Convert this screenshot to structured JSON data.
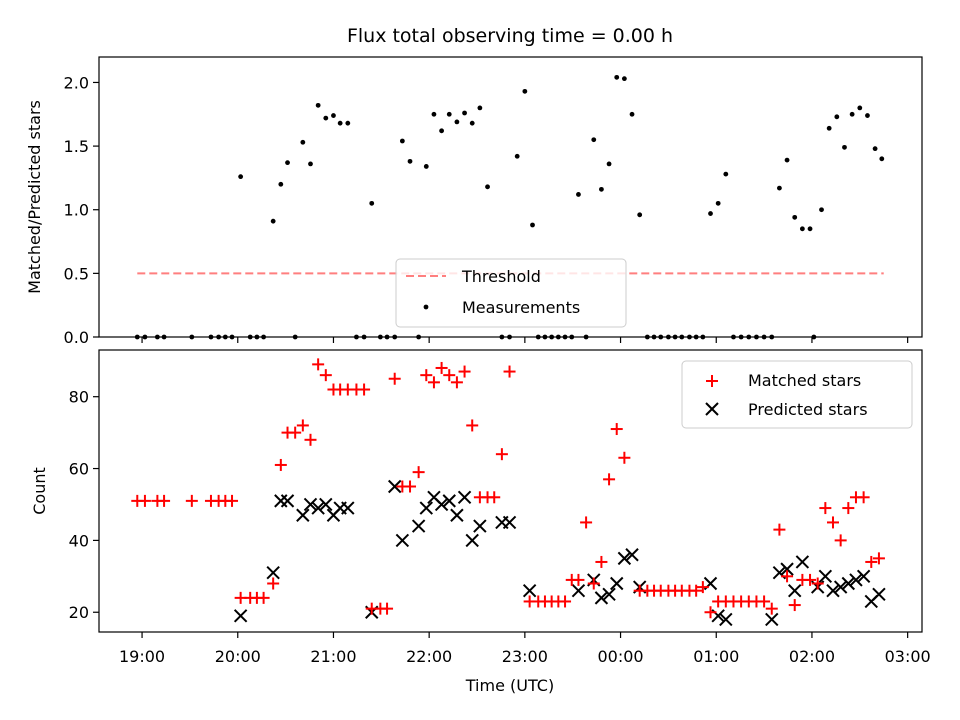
{
  "chart_data": [
    {
      "type": "scatter",
      "title": "Flux total observing time = 0.00 h",
      "xlabel": "",
      "ylabel": "Matched/Predicted stars",
      "xlim": [
        -0.45,
        8.15
      ],
      "ylim": [
        0.0,
        2.2
      ],
      "x_unit": "hours after 19:00 UTC",
      "yticks": [
        0.0,
        0.5,
        1.0,
        1.5,
        2.0
      ],
      "ytick_labels": [
        "0.0",
        "0.5",
        "1.0",
        "1.5",
        "2.0"
      ],
      "legend_position": "bottom-center",
      "threshold": {
        "name": "Threshold",
        "y": 0.5,
        "x_start": -0.05,
        "x_end": 7.75,
        "color": "#ff7f7f",
        "style": "dashed"
      },
      "series": [
        {
          "name": "Measurements",
          "color": "#000000",
          "marker": "dot",
          "points": [
            [
              -0.05,
              0.0
            ],
            [
              0.03,
              0.0
            ],
            [
              0.16,
              0.0
            ],
            [
              0.23,
              0.0
            ],
            [
              0.52,
              0.0
            ],
            [
              0.72,
              0.0
            ],
            [
              0.8,
              0.0
            ],
            [
              0.87,
              0.0
            ],
            [
              0.94,
              0.0
            ],
            [
              1.03,
              1.26
            ],
            [
              1.13,
              0.0
            ],
            [
              1.2,
              0.0
            ],
            [
              1.27,
              0.0
            ],
            [
              1.37,
              0.91
            ],
            [
              1.45,
              1.2
            ],
            [
              1.52,
              1.37
            ],
            [
              1.6,
              0.0
            ],
            [
              1.68,
              1.53
            ],
            [
              1.76,
              1.36
            ],
            [
              1.84,
              1.82
            ],
            [
              1.92,
              1.72
            ],
            [
              2.0,
              1.74
            ],
            [
              2.07,
              1.68
            ],
            [
              2.15,
              1.68
            ],
            [
              2.24,
              0.0
            ],
            [
              2.32,
              0.0
            ],
            [
              2.4,
              1.05
            ],
            [
              2.49,
              0.0
            ],
            [
              2.56,
              0.0
            ],
            [
              2.64,
              0.0
            ],
            [
              2.72,
              1.54
            ],
            [
              2.8,
              1.38
            ],
            [
              2.89,
              0.0
            ],
            [
              2.97,
              1.34
            ],
            [
              3.05,
              1.75
            ],
            [
              3.13,
              1.62
            ],
            [
              3.21,
              1.75
            ],
            [
              3.29,
              1.69
            ],
            [
              3.37,
              1.76
            ],
            [
              3.45,
              1.68
            ],
            [
              3.53,
              1.8
            ],
            [
              3.61,
              1.18
            ],
            [
              3.76,
              0.0
            ],
            [
              3.84,
              0.0
            ],
            [
              3.92,
              1.42
            ],
            [
              4.0,
              1.93
            ],
            [
              4.08,
              0.88
            ],
            [
              4.14,
              0.0
            ],
            [
              4.21,
              0.0
            ],
            [
              4.28,
              0.0
            ],
            [
              4.35,
              0.0
            ],
            [
              4.42,
              0.0
            ],
            [
              4.49,
              0.0
            ],
            [
              4.56,
              1.12
            ],
            [
              4.64,
              0.0
            ],
            [
              4.72,
              1.55
            ],
            [
              4.8,
              1.16
            ],
            [
              4.88,
              1.36
            ],
            [
              4.96,
              2.04
            ],
            [
              5.04,
              2.03
            ],
            [
              5.12,
              1.75
            ],
            [
              5.2,
              0.96
            ],
            [
              5.28,
              0.0
            ],
            [
              5.35,
              0.0
            ],
            [
              5.42,
              0.0
            ],
            [
              5.5,
              0.0
            ],
            [
              5.57,
              0.0
            ],
            [
              5.64,
              0.0
            ],
            [
              5.72,
              0.0
            ],
            [
              5.79,
              0.0
            ],
            [
              5.86,
              0.0
            ],
            [
              5.94,
              0.97
            ],
            [
              6.02,
              1.05
            ],
            [
              6.1,
              1.28
            ],
            [
              6.18,
              0.0
            ],
            [
              6.26,
              0.0
            ],
            [
              6.34,
              0.0
            ],
            [
              6.42,
              0.0
            ],
            [
              6.5,
              0.0
            ],
            [
              6.58,
              0.0
            ],
            [
              6.66,
              1.17
            ],
            [
              6.74,
              1.39
            ],
            [
              6.82,
              0.94
            ],
            [
              6.9,
              0.85
            ],
            [
              6.98,
              0.85
            ],
            [
              7.02,
              0.0
            ],
            [
              7.1,
              1.0
            ],
            [
              7.18,
              1.64
            ],
            [
              7.26,
              1.73
            ],
            [
              7.34,
              1.49
            ],
            [
              7.42,
              1.75
            ],
            [
              7.5,
              1.8
            ],
            [
              7.58,
              1.74
            ],
            [
              7.66,
              1.48
            ],
            [
              7.73,
              1.4
            ]
          ]
        }
      ]
    },
    {
      "type": "scatter",
      "title": "",
      "xlabel": "Time (UTC)",
      "ylabel": "Count",
      "xlim": [
        -0.45,
        8.15
      ],
      "ylim": [
        14.5,
        93.0
      ],
      "x_unit": "hours after 19:00 UTC",
      "xticks": [
        0,
        1,
        2,
        3,
        4,
        5,
        6,
        7,
        8
      ],
      "xtick_labels": [
        "19:00",
        "20:00",
        "21:00",
        "22:00",
        "23:00",
        "00:00",
        "01:00",
        "02:00",
        "03:00"
      ],
      "yticks": [
        20,
        40,
        60,
        80
      ],
      "ytick_labels": [
        "20",
        "40",
        "60",
        "80"
      ],
      "legend_position": "top-right",
      "series": [
        {
          "name": "Matched stars",
          "color": "#ff0000",
          "marker": "plus",
          "points": [
            [
              -0.05,
              51
            ],
            [
              0.03,
              51
            ],
            [
              0.16,
              51
            ],
            [
              0.23,
              51
            ],
            [
              0.52,
              51
            ],
            [
              0.72,
              51
            ],
            [
              0.8,
              51
            ],
            [
              0.87,
              51
            ],
            [
              0.94,
              51
            ],
            [
              1.03,
              24
            ],
            [
              1.13,
              24
            ],
            [
              1.2,
              24
            ],
            [
              1.27,
              24
            ],
            [
              1.37,
              28
            ],
            [
              1.45,
              61
            ],
            [
              1.52,
              70
            ],
            [
              1.6,
              70
            ],
            [
              1.68,
              72
            ],
            [
              1.76,
              68
            ],
            [
              1.84,
              89
            ],
            [
              1.92,
              86
            ],
            [
              2.0,
              82
            ],
            [
              2.07,
              82
            ],
            [
              2.15,
              82
            ],
            [
              2.24,
              82
            ],
            [
              2.32,
              82
            ],
            [
              2.4,
              21
            ],
            [
              2.49,
              21
            ],
            [
              2.56,
              21
            ],
            [
              2.64,
              85
            ],
            [
              2.72,
              55
            ],
            [
              2.8,
              55
            ],
            [
              2.89,
              59
            ],
            [
              2.97,
              86
            ],
            [
              3.05,
              84
            ],
            [
              3.13,
              88
            ],
            [
              3.21,
              86
            ],
            [
              3.29,
              84
            ],
            [
              3.37,
              87
            ],
            [
              3.45,
              72
            ],
            [
              3.53,
              52
            ],
            [
              3.61,
              52
            ],
            [
              3.68,
              52
            ],
            [
              3.76,
              64
            ],
            [
              3.84,
              87
            ],
            [
              4.05,
              23
            ],
            [
              4.14,
              23
            ],
            [
              4.21,
              23
            ],
            [
              4.28,
              23
            ],
            [
              4.35,
              23
            ],
            [
              4.42,
              23
            ],
            [
              4.49,
              29
            ],
            [
              4.56,
              29
            ],
            [
              4.64,
              45
            ],
            [
              4.72,
              28
            ],
            [
              4.8,
              34
            ],
            [
              4.88,
              57
            ],
            [
              4.96,
              71
            ],
            [
              5.04,
              63
            ],
            [
              5.2,
              26
            ],
            [
              5.28,
              26
            ],
            [
              5.35,
              26
            ],
            [
              5.42,
              26
            ],
            [
              5.5,
              26
            ],
            [
              5.57,
              26
            ],
            [
              5.64,
              26
            ],
            [
              5.72,
              26
            ],
            [
              5.79,
              26
            ],
            [
              5.86,
              27
            ],
            [
              5.94,
              20
            ],
            [
              6.02,
              23
            ],
            [
              6.1,
              23
            ],
            [
              6.18,
              23
            ],
            [
              6.26,
              23
            ],
            [
              6.34,
              23
            ],
            [
              6.42,
              23
            ],
            [
              6.5,
              23
            ],
            [
              6.58,
              21
            ],
            [
              6.66,
              43
            ],
            [
              6.74,
              30
            ],
            [
              6.82,
              22
            ],
            [
              6.9,
              29
            ],
            [
              6.98,
              29
            ],
            [
              7.06,
              28
            ],
            [
              7.14,
              49
            ],
            [
              7.22,
              45
            ],
            [
              7.3,
              40
            ],
            [
              7.38,
              49
            ],
            [
              7.46,
              52
            ],
            [
              7.54,
              52
            ],
            [
              7.62,
              34
            ],
            [
              7.7,
              35
            ]
          ]
        },
        {
          "name": "Predicted stars",
          "color": "#000000",
          "marker": "x",
          "points": [
            [
              1.03,
              19
            ],
            [
              1.37,
              31
            ],
            [
              1.45,
              51
            ],
            [
              1.52,
              51
            ],
            [
              1.68,
              47
            ],
            [
              1.76,
              50
            ],
            [
              1.84,
              49
            ],
            [
              1.92,
              50
            ],
            [
              2.0,
              47
            ],
            [
              2.07,
              49
            ],
            [
              2.15,
              49
            ],
            [
              2.4,
              20
            ],
            [
              2.64,
              55
            ],
            [
              2.72,
              40
            ],
            [
              2.89,
              44
            ],
            [
              2.97,
              49
            ],
            [
              3.05,
              52
            ],
            [
              3.13,
              50
            ],
            [
              3.21,
              51
            ],
            [
              3.29,
              47
            ],
            [
              3.37,
              52
            ],
            [
              3.45,
              40
            ],
            [
              3.53,
              44
            ],
            [
              3.76,
              45
            ],
            [
              3.84,
              45
            ],
            [
              4.05,
              26
            ],
            [
              4.56,
              26
            ],
            [
              4.72,
              29
            ],
            [
              4.8,
              24
            ],
            [
              4.88,
              25
            ],
            [
              4.96,
              28
            ],
            [
              5.04,
              35
            ],
            [
              5.12,
              36
            ],
            [
              5.2,
              27
            ],
            [
              5.94,
              28
            ],
            [
              6.02,
              19
            ],
            [
              6.1,
              18
            ],
            [
              6.58,
              18
            ],
            [
              6.66,
              31
            ],
            [
              6.74,
              32
            ],
            [
              6.82,
              26
            ],
            [
              6.9,
              34
            ],
            [
              7.06,
              27
            ],
            [
              7.14,
              30
            ],
            [
              7.22,
              26
            ],
            [
              7.3,
              27
            ],
            [
              7.38,
              28
            ],
            [
              7.46,
              29
            ],
            [
              7.54,
              30
            ],
            [
              7.62,
              23
            ],
            [
              7.7,
              25
            ]
          ]
        }
      ]
    }
  ]
}
